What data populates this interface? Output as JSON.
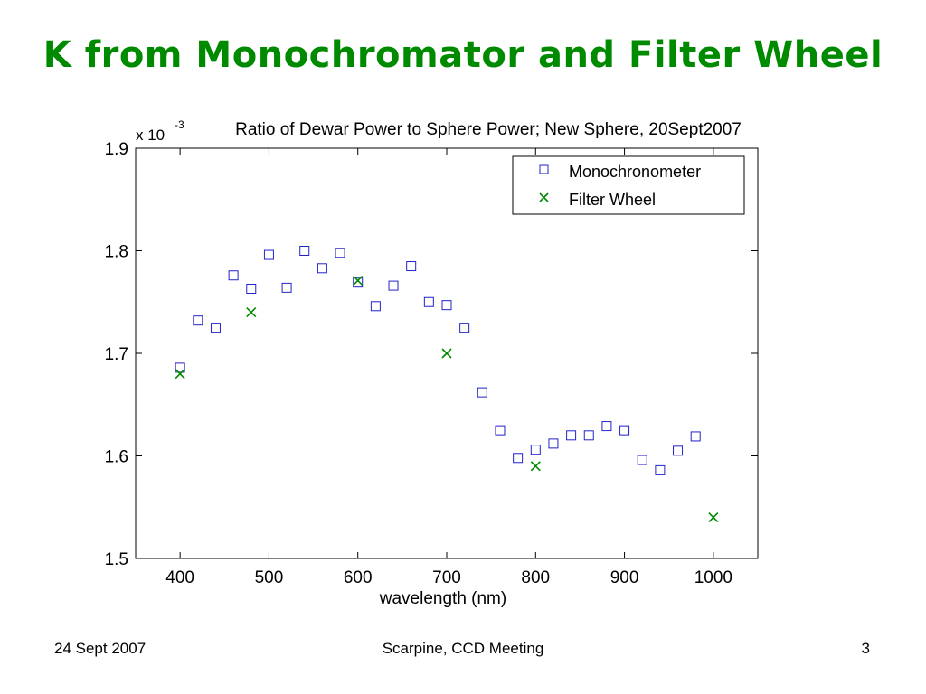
{
  "slide": {
    "title": "K from Monochromator and Filter Wheel",
    "footer_left": "24 Sept 2007",
    "footer_center": "Scarpine, CCD Meeting",
    "footer_right": "3"
  },
  "colors": {
    "title": "#008a00",
    "monochronometer": "#2222cc",
    "filter_wheel": "#008a00"
  },
  "chart_data": {
    "type": "scatter",
    "title": "Ratio of Dewar Power to Sphere Power; New Sphere, 20Sept2007",
    "xlabel": "wavelength (nm)",
    "ylabel": "",
    "y_multiplier": "x 10",
    "y_multiplier_exp": "-3",
    "xlim": [
      350,
      1050
    ],
    "ylim": [
      1.5,
      1.9
    ],
    "xticks": [
      400,
      500,
      600,
      700,
      800,
      900,
      1000
    ],
    "yticks": [
      1.5,
      1.6,
      1.7,
      1.8,
      1.9
    ],
    "xtick_labels": [
      "400",
      "500",
      "600",
      "700",
      "800",
      "900",
      "1000"
    ],
    "ytick_labels": [
      "1.5",
      "1.6",
      "1.7",
      "1.8",
      "1.9"
    ],
    "grid": false,
    "legend_position": "top-right",
    "series": [
      {
        "name": "Monochronometer",
        "marker": "square",
        "points": [
          [
            400,
            1.686
          ],
          [
            420,
            1.732
          ],
          [
            440,
            1.725
          ],
          [
            460,
            1.776
          ],
          [
            480,
            1.763
          ],
          [
            500,
            1.796
          ],
          [
            520,
            1.764
          ],
          [
            540,
            1.8
          ],
          [
            560,
            1.783
          ],
          [
            580,
            1.798
          ],
          [
            600,
            1.769
          ],
          [
            620,
            1.746
          ],
          [
            640,
            1.766
          ],
          [
            660,
            1.785
          ],
          [
            680,
            1.75
          ],
          [
            700,
            1.747
          ],
          [
            720,
            1.725
          ],
          [
            740,
            1.662
          ],
          [
            760,
            1.625
          ],
          [
            780,
            1.598
          ],
          [
            800,
            1.606
          ],
          [
            820,
            1.612
          ],
          [
            840,
            1.62
          ],
          [
            860,
            1.62
          ],
          [
            880,
            1.629
          ],
          [
            900,
            1.625
          ],
          [
            920,
            1.596
          ],
          [
            940,
            1.586
          ],
          [
            960,
            1.605
          ],
          [
            980,
            1.619
          ]
        ]
      },
      {
        "name": "Filter Wheel",
        "marker": "x",
        "points": [
          [
            400,
            1.68
          ],
          [
            480,
            1.74
          ],
          [
            600,
            1.771
          ],
          [
            700,
            1.7
          ],
          [
            800,
            1.59
          ],
          [
            1000,
            1.54
          ]
        ]
      }
    ]
  }
}
